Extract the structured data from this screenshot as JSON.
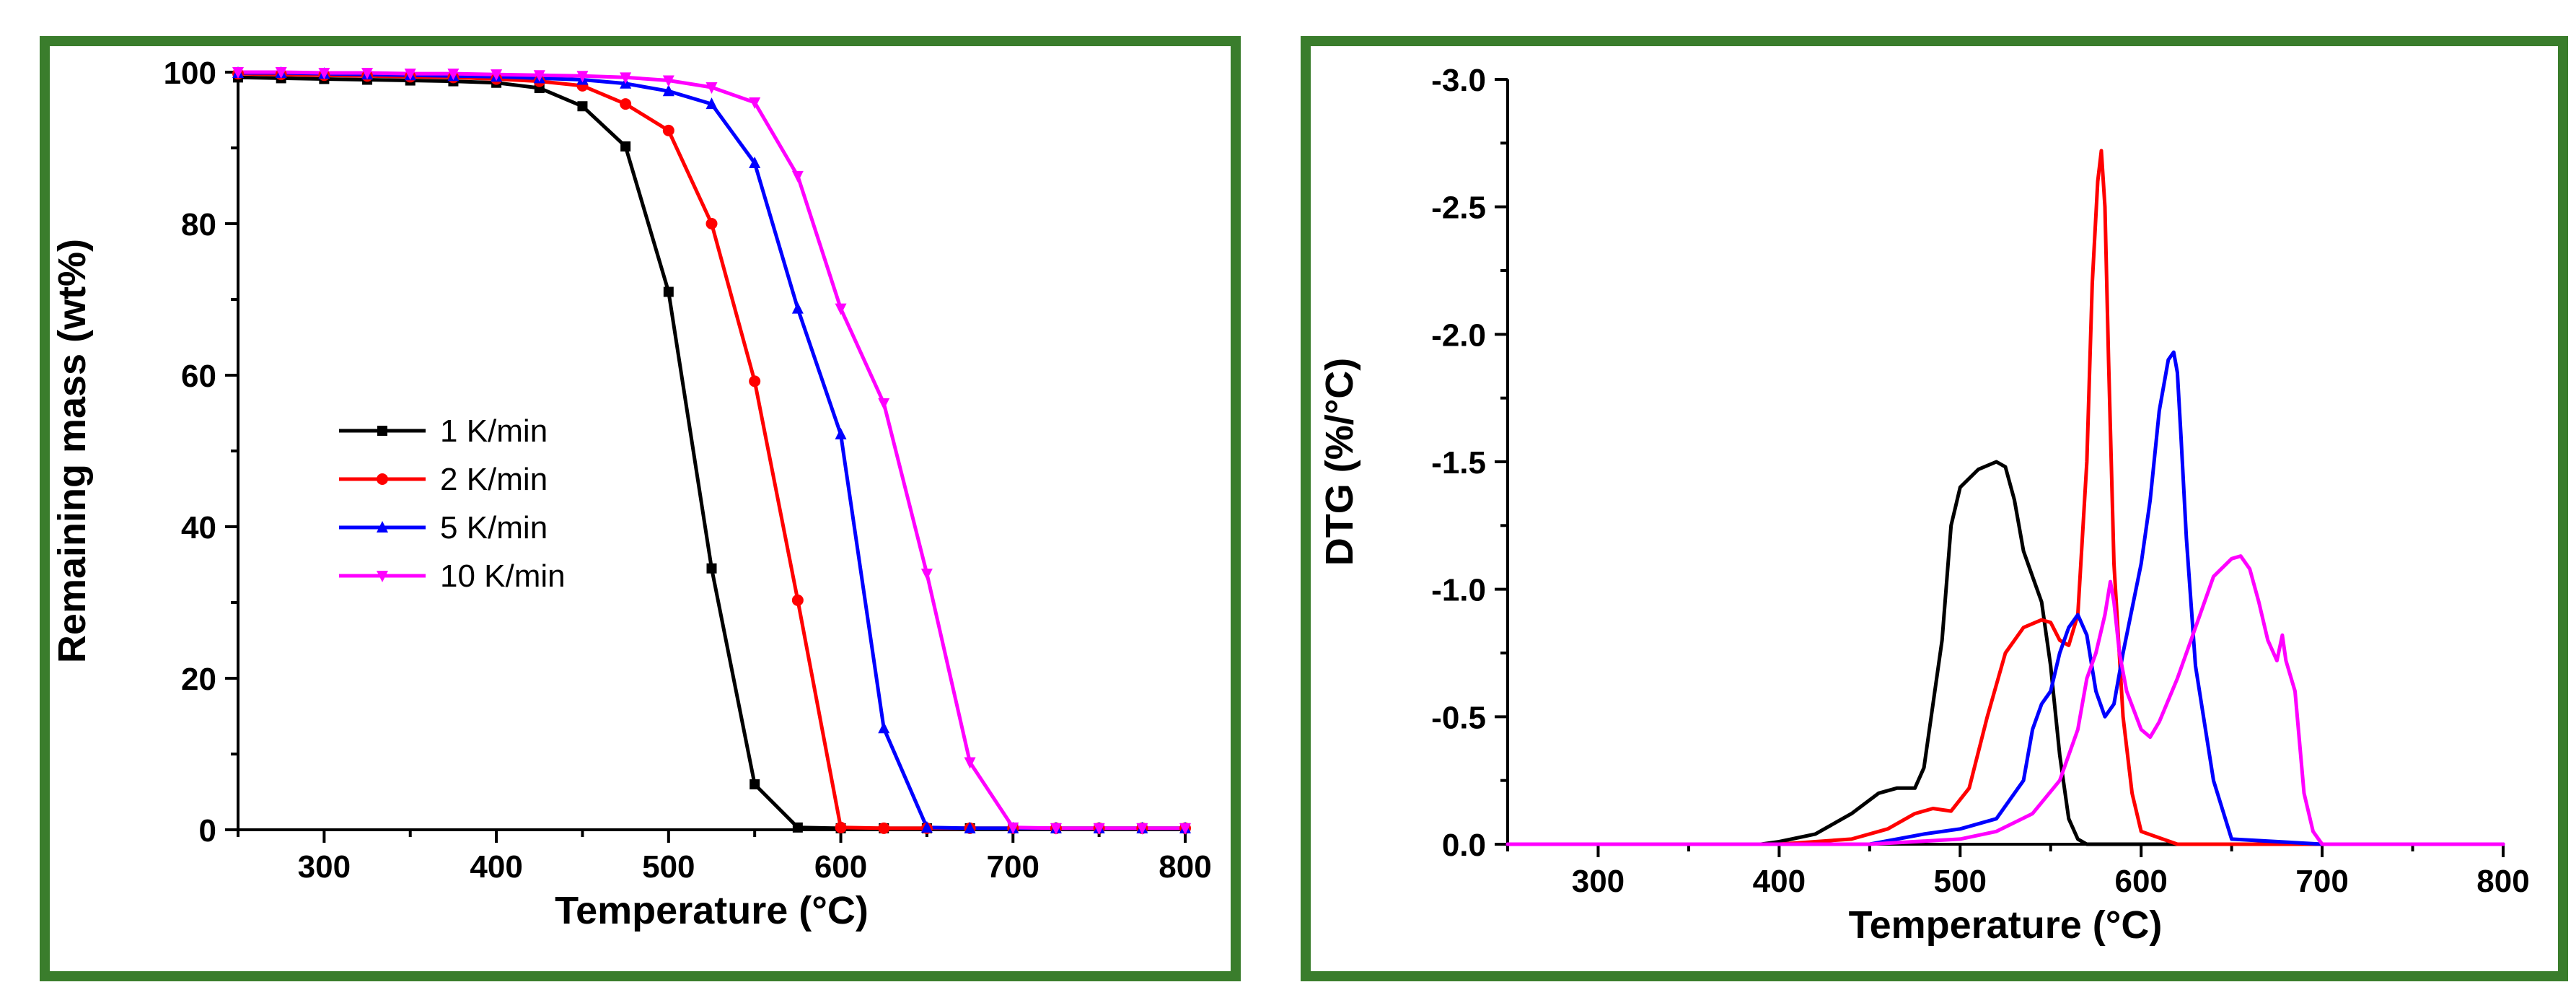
{
  "chart_data": [
    {
      "type": "line",
      "id": "tga",
      "xlabel": "Temperature (°C)",
      "ylabel": "Remaining mass (wt%)",
      "xlim": [
        250,
        800
      ],
      "ylim": [
        0,
        100
      ],
      "xticks": [
        300,
        400,
        500,
        600,
        700,
        800
      ],
      "yticks": [
        0,
        20,
        40,
        60,
        80,
        100
      ],
      "legend_position": "center-left",
      "series": [
        {
          "name": "1 K/min",
          "color": "#000000",
          "marker": "square",
          "x": [
            250,
            275,
            300,
            325,
            350,
            375,
            400,
            425,
            450,
            475,
            500,
            525,
            550,
            575,
            600,
            625,
            650,
            675,
            700,
            725,
            750,
            775,
            800
          ],
          "y": [
            99.3,
            99.2,
            99.1,
            99.0,
            98.9,
            98.8,
            98.6,
            97.9,
            95.5,
            90.2,
            71.0,
            34.5,
            6.0,
            0.3,
            0.2,
            0.2,
            0.2,
            0.2,
            0.2,
            0.2,
            0.2,
            0.2,
            0.2
          ]
        },
        {
          "name": "2 K/min",
          "color": "#ff0000",
          "marker": "circle",
          "x": [
            250,
            275,
            300,
            325,
            350,
            375,
            400,
            425,
            450,
            475,
            500,
            525,
            550,
            575,
            600,
            625,
            650,
            675,
            700,
            725,
            750,
            775,
            800
          ],
          "y": [
            99.8,
            99.7,
            99.6,
            99.5,
            99.4,
            99.3,
            99.1,
            98.8,
            98.2,
            95.8,
            92.3,
            80.0,
            59.2,
            30.3,
            0.3,
            0.2,
            0.2,
            0.2,
            0.2,
            0.2,
            0.2,
            0.2,
            0.2
          ]
        },
        {
          "name": "5 K/min",
          "color": "#0000ff",
          "marker": "triangle-up",
          "x": [
            250,
            275,
            300,
            325,
            350,
            375,
            400,
            425,
            450,
            475,
            500,
            525,
            550,
            575,
            600,
            625,
            650,
            675,
            700,
            725,
            750,
            775,
            800
          ],
          "y": [
            99.9,
            99.9,
            99.8,
            99.7,
            99.6,
            99.5,
            99.4,
            99.2,
            99.0,
            98.5,
            97.5,
            95.8,
            88.0,
            68.8,
            52.2,
            13.4,
            0.3,
            0.2,
            0.2,
            0.2,
            0.2,
            0.2,
            0.2
          ]
        },
        {
          "name": "10 K/min",
          "color": "#ff00ff",
          "marker": "triangle-down",
          "x": [
            250,
            275,
            300,
            325,
            350,
            375,
            400,
            425,
            450,
            475,
            500,
            525,
            550,
            575,
            600,
            625,
            650,
            675,
            700,
            725,
            750,
            775,
            800
          ],
          "y": [
            100.0,
            100.0,
            99.9,
            99.9,
            99.8,
            99.8,
            99.7,
            99.6,
            99.5,
            99.3,
            98.9,
            98.0,
            96.0,
            86.3,
            68.8,
            56.3,
            33.8,
            8.9,
            0.3,
            0.2,
            0.2,
            0.2,
            0.2
          ]
        }
      ]
    },
    {
      "type": "line",
      "id": "dtg",
      "xlabel": "Temperature (°C)",
      "ylabel": "DTG (%/°C)",
      "xlim": [
        250,
        800
      ],
      "ylim": [
        0.0,
        -3.0
      ],
      "xticks": [
        300,
        400,
        500,
        600,
        700,
        800
      ],
      "yticks": [
        0.0,
        -0.5,
        -1.0,
        -1.5,
        -2.0,
        -2.5,
        -3.0
      ],
      "ytick_labels": [
        "0.0",
        "-0.5",
        "-1.0",
        "-1.5",
        "-2.0",
        "-2.5",
        "-3.0"
      ],
      "series": [
        {
          "name": "1 K/min",
          "color": "#000000",
          "x": [
            250,
            300,
            350,
            390,
            400,
            420,
            440,
            455,
            465,
            475,
            480,
            490,
            495,
            500,
            510,
            520,
            525,
            530,
            535,
            540,
            545,
            550,
            555,
            560,
            565,
            570,
            600,
            800
          ],
          "y": [
            0,
            0,
            0,
            0,
            -0.01,
            -0.04,
            -0.12,
            -0.2,
            -0.22,
            -0.22,
            -0.3,
            -0.8,
            -1.25,
            -1.4,
            -1.47,
            -1.5,
            -1.48,
            -1.35,
            -1.15,
            -1.05,
            -0.95,
            -0.7,
            -0.35,
            -0.1,
            -0.02,
            0,
            0,
            0
          ]
        },
        {
          "name": "2 K/min",
          "color": "#ff0000",
          "x": [
            250,
            300,
            350,
            400,
            440,
            460,
            475,
            485,
            495,
            505,
            515,
            525,
            535,
            545,
            550,
            555,
            560,
            565,
            570,
            573,
            576,
            578,
            580,
            582,
            585,
            590,
            595,
            600,
            620,
            800
          ],
          "y": [
            0,
            0,
            0,
            0,
            -0.02,
            -0.06,
            -0.12,
            -0.14,
            -0.13,
            -0.22,
            -0.5,
            -0.75,
            -0.85,
            -0.88,
            -0.87,
            -0.8,
            -0.78,
            -0.9,
            -1.5,
            -2.2,
            -2.6,
            -2.72,
            -2.5,
            -1.9,
            -1.1,
            -0.5,
            -0.2,
            -0.05,
            0,
            0
          ]
        },
        {
          "name": "5 K/min",
          "color": "#0000ff",
          "x": [
            250,
            300,
            350,
            400,
            450,
            480,
            500,
            520,
            535,
            540,
            545,
            550,
            555,
            560,
            565,
            570,
            575,
            580,
            585,
            590,
            600,
            605,
            610,
            615,
            618,
            620,
            622,
            625,
            630,
            640,
            650,
            700,
            800
          ],
          "y": [
            0,
            0,
            0,
            0,
            0,
            -0.04,
            -0.06,
            -0.1,
            -0.25,
            -0.45,
            -0.55,
            -0.6,
            -0.75,
            -0.85,
            -0.9,
            -0.82,
            -0.6,
            -0.5,
            -0.55,
            -0.75,
            -1.1,
            -1.35,
            -1.7,
            -1.9,
            -1.93,
            -1.85,
            -1.6,
            -1.2,
            -0.7,
            -0.25,
            -0.02,
            0,
            0
          ]
        },
        {
          "name": "10 K/min",
          "color": "#ff00ff",
          "x": [
            250,
            300,
            350,
            400,
            450,
            500,
            520,
            540,
            555,
            565,
            570,
            575,
            580,
            583,
            585,
            588,
            592,
            600,
            605,
            610,
            620,
            630,
            640,
            650,
            655,
            660,
            665,
            670,
            675,
            678,
            680,
            685,
            690,
            695,
            700,
            800
          ],
          "y": [
            0,
            0,
            0,
            0,
            0,
            -0.02,
            -0.05,
            -0.12,
            -0.25,
            -0.45,
            -0.65,
            -0.75,
            -0.9,
            -1.03,
            -0.95,
            -0.75,
            -0.6,
            -0.45,
            -0.42,
            -0.48,
            -0.65,
            -0.85,
            -1.05,
            -1.12,
            -1.13,
            -1.08,
            -0.95,
            -0.8,
            -0.72,
            -0.82,
            -0.72,
            -0.6,
            -0.2,
            -0.05,
            0,
            0
          ]
        }
      ]
    }
  ]
}
